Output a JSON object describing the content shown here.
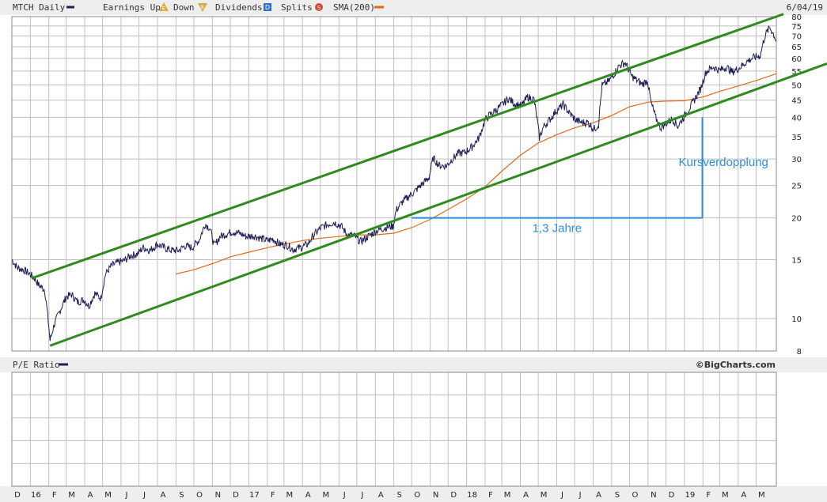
{
  "header": {
    "symbol_label": "MTCH Daily",
    "earnings_label": "Earnings Up",
    "earnings_icon_letter": "E",
    "down_label": "Down",
    "down_icon_letter": "E",
    "dividends_label": "Dividends",
    "dividends_icon_letter": "D",
    "splits_label": "Splits",
    "splits_icon_letter": "S",
    "sma_label": "SMA(200)",
    "date": "6/04/19"
  },
  "lower_panel": {
    "title": "P/E Ratio",
    "credit": "©BigCharts.com"
  },
  "colors": {
    "price": "#1f1f55",
    "sma": "#e06a1c",
    "channel": "#2e8b1e",
    "annotation": "#2b8ee0",
    "grid": "#bfbfbf",
    "earnings_icon": "#d9a93a",
    "dividends_icon": "#2f6fd0",
    "splits_icon": "#d04a3a"
  },
  "chart_data": {
    "type": "line",
    "y_scale": "log",
    "ylim": [
      8,
      80
    ],
    "y_ticks": [
      8,
      10,
      15,
      20,
      25,
      30,
      35,
      40,
      45,
      50,
      55,
      60,
      65,
      70,
      75,
      80
    ],
    "x_range": [
      "2015-12-01",
      "2019-06-04"
    ],
    "x_ticks": [
      {
        "label": "D",
        "date": "2015-12-01"
      },
      {
        "label": "16",
        "date": "2016-01-01"
      },
      {
        "label": "F",
        "date": "2016-02-01"
      },
      {
        "label": "M",
        "date": "2016-03-01"
      },
      {
        "label": "A",
        "date": "2016-04-01"
      },
      {
        "label": "M",
        "date": "2016-05-01"
      },
      {
        "label": "J",
        "date": "2016-06-01"
      },
      {
        "label": "J",
        "date": "2016-07-01"
      },
      {
        "label": "A",
        "date": "2016-08-01"
      },
      {
        "label": "S",
        "date": "2016-09-01"
      },
      {
        "label": "O",
        "date": "2016-10-01"
      },
      {
        "label": "N",
        "date": "2016-11-01"
      },
      {
        "label": "D",
        "date": "2016-12-01"
      },
      {
        "label": "17",
        "date": "2017-01-01"
      },
      {
        "label": "F",
        "date": "2017-02-01"
      },
      {
        "label": "M",
        "date": "2017-03-01"
      },
      {
        "label": "A",
        "date": "2017-04-01"
      },
      {
        "label": "M",
        "date": "2017-05-01"
      },
      {
        "label": "J",
        "date": "2017-06-01"
      },
      {
        "label": "J",
        "date": "2017-07-01"
      },
      {
        "label": "A",
        "date": "2017-08-01"
      },
      {
        "label": "S",
        "date": "2017-09-01"
      },
      {
        "label": "O",
        "date": "2017-10-01"
      },
      {
        "label": "N",
        "date": "2017-11-01"
      },
      {
        "label": "D",
        "date": "2017-12-01"
      },
      {
        "label": "18",
        "date": "2018-01-01"
      },
      {
        "label": "F",
        "date": "2018-02-01"
      },
      {
        "label": "M",
        "date": "2018-03-01"
      },
      {
        "label": "A",
        "date": "2018-04-01"
      },
      {
        "label": "M",
        "date": "2018-05-01"
      },
      {
        "label": "J",
        "date": "2018-06-01"
      },
      {
        "label": "J",
        "date": "2018-07-01"
      },
      {
        "label": "A",
        "date": "2018-08-01"
      },
      {
        "label": "S",
        "date": "2018-09-01"
      },
      {
        "label": "O",
        "date": "2018-10-01"
      },
      {
        "label": "N",
        "date": "2018-11-01"
      },
      {
        "label": "D",
        "date": "2018-12-01"
      },
      {
        "label": "19",
        "date": "2019-01-01"
      },
      {
        "label": "F",
        "date": "2019-02-01"
      },
      {
        "label": "M",
        "date": "2019-03-01"
      },
      {
        "label": "A",
        "date": "2019-04-01"
      },
      {
        "label": "M",
        "date": "2019-05-01"
      }
    ],
    "series": [
      {
        "name": "MTCH Daily",
        "role": "price",
        "points": [
          [
            "2015-12-01",
            15.0
          ],
          [
            "2015-12-10",
            14.2
          ],
          [
            "2015-12-20",
            14.0
          ],
          [
            "2015-12-31",
            13.6
          ],
          [
            "2016-01-08",
            13.2
          ],
          [
            "2016-01-15",
            12.6
          ],
          [
            "2016-01-25",
            12.2
          ],
          [
            "2016-02-03",
            8.6
          ],
          [
            "2016-02-10",
            9.6
          ],
          [
            "2016-02-20",
            10.6
          ],
          [
            "2016-03-01",
            11.6
          ],
          [
            "2016-03-10",
            11.8
          ],
          [
            "2016-03-20",
            11.2
          ],
          [
            "2016-03-31",
            11.4
          ],
          [
            "2016-04-08",
            10.9
          ],
          [
            "2016-04-18",
            11.9
          ],
          [
            "2016-04-28",
            11.5
          ],
          [
            "2016-05-06",
            13.6
          ],
          [
            "2016-05-16",
            14.4
          ],
          [
            "2016-05-26",
            14.7
          ],
          [
            "2016-06-06",
            14.9
          ],
          [
            "2016-06-16",
            15.4
          ],
          [
            "2016-06-28",
            15.6
          ],
          [
            "2016-07-08",
            16.3
          ],
          [
            "2016-07-20",
            16.0
          ],
          [
            "2016-08-01",
            16.7
          ],
          [
            "2016-08-12",
            16.3
          ],
          [
            "2016-08-24",
            16.0
          ],
          [
            "2016-09-06",
            16.0
          ],
          [
            "2016-09-16",
            16.5
          ],
          [
            "2016-09-28",
            16.3
          ],
          [
            "2016-10-10",
            17.2
          ],
          [
            "2016-10-20",
            19.2
          ],
          [
            "2016-10-28",
            18.6
          ],
          [
            "2016-11-04",
            16.5
          ],
          [
            "2016-11-14",
            17.6
          ],
          [
            "2016-11-24",
            17.9
          ],
          [
            "2016-12-05",
            18.2
          ],
          [
            "2016-12-16",
            18.0
          ],
          [
            "2016-12-28",
            17.6
          ],
          [
            "2017-01-09",
            17.7
          ],
          [
            "2017-01-20",
            17.4
          ],
          [
            "2017-02-01",
            17.1
          ],
          [
            "2017-02-10",
            17.3
          ],
          [
            "2017-02-22",
            16.7
          ],
          [
            "2017-03-06",
            16.6
          ],
          [
            "2017-03-16",
            16.1
          ],
          [
            "2017-03-28",
            16.3
          ],
          [
            "2017-04-10",
            16.7
          ],
          [
            "2017-04-20",
            17.8
          ],
          [
            "2017-05-02",
            18.7
          ],
          [
            "2017-05-12",
            19.1
          ],
          [
            "2017-05-24",
            19.4
          ],
          [
            "2017-06-05",
            18.9
          ],
          [
            "2017-06-15",
            17.8
          ],
          [
            "2017-06-26",
            17.7
          ],
          [
            "2017-07-07",
            17.0
          ],
          [
            "2017-07-14",
            17.3
          ],
          [
            "2017-07-24",
            17.8
          ],
          [
            "2017-08-03",
            18.3
          ],
          [
            "2017-08-14",
            18.6
          ],
          [
            "2017-08-22",
            18.8
          ],
          [
            "2017-08-31",
            18.9
          ],
          [
            "2017-09-05",
            21.1
          ],
          [
            "2017-09-15",
            22.3
          ],
          [
            "2017-09-26",
            23.2
          ],
          [
            "2017-10-06",
            24.0
          ],
          [
            "2017-10-18",
            25.2
          ],
          [
            "2017-10-30",
            26.4
          ],
          [
            "2017-11-06",
            30.2
          ],
          [
            "2017-11-16",
            28.7
          ],
          [
            "2017-11-28",
            28.6
          ],
          [
            "2017-12-08",
            30.0
          ],
          [
            "2017-12-18",
            31.2
          ],
          [
            "2017-12-29",
            31.4
          ],
          [
            "2018-01-10",
            32.6
          ],
          [
            "2018-01-22",
            34.8
          ],
          [
            "2018-02-01",
            39.2
          ],
          [
            "2018-02-08",
            40.6
          ],
          [
            "2018-02-19",
            42.0
          ],
          [
            "2018-03-01",
            43.5
          ],
          [
            "2018-03-12",
            45.5
          ],
          [
            "2018-03-22",
            44.0
          ],
          [
            "2018-04-03",
            43.2
          ],
          [
            "2018-04-13",
            46.0
          ],
          [
            "2018-04-24",
            45.2
          ],
          [
            "2018-05-03",
            34.8
          ],
          [
            "2018-05-10",
            37.5
          ],
          [
            "2018-05-21",
            39.5
          ],
          [
            "2018-06-01",
            42.0
          ],
          [
            "2018-06-12",
            43.6
          ],
          [
            "2018-06-22",
            41.2
          ],
          [
            "2018-07-03",
            39.2
          ],
          [
            "2018-07-13",
            38.6
          ],
          [
            "2018-07-24",
            38.6
          ],
          [
            "2018-08-02",
            36.8
          ],
          [
            "2018-08-10",
            38.0
          ],
          [
            "2018-08-16",
            49.8
          ],
          [
            "2018-08-27",
            51.2
          ],
          [
            "2018-09-06",
            54.2
          ],
          [
            "2018-09-14",
            57.2
          ],
          [
            "2018-09-24",
            58.2
          ],
          [
            "2018-10-04",
            53.2
          ],
          [
            "2018-10-12",
            51.8
          ],
          [
            "2018-10-22",
            50.2
          ],
          [
            "2018-10-31",
            51.6
          ],
          [
            "2018-11-06",
            44.2
          ],
          [
            "2018-11-14",
            39.8
          ],
          [
            "2018-11-22",
            37.2
          ],
          [
            "2018-12-03",
            38.6
          ],
          [
            "2018-12-12",
            39.6
          ],
          [
            "2018-12-21",
            37.6
          ],
          [
            "2019-01-02",
            40.6
          ],
          [
            "2019-01-15",
            44.2
          ],
          [
            "2019-01-28",
            48.6
          ],
          [
            "2019-02-06",
            54.6
          ],
          [
            "2019-02-18",
            56.6
          ],
          [
            "2019-03-01",
            55.2
          ],
          [
            "2019-03-12",
            56.6
          ],
          [
            "2019-03-22",
            54.6
          ],
          [
            "2019-04-03",
            56.2
          ],
          [
            "2019-04-15",
            58.6
          ],
          [
            "2019-04-26",
            60.2
          ],
          [
            "2019-05-08",
            61.2
          ],
          [
            "2019-05-16",
            70.2
          ],
          [
            "2019-05-24",
            74.2
          ],
          [
            "2019-05-31",
            70.6
          ],
          [
            "2019-06-04",
            67.5
          ]
        ]
      },
      {
        "name": "SMA(200)",
        "role": "sma",
        "points": [
          [
            "2016-09-01",
            13.6
          ],
          [
            "2016-10-01",
            14.0
          ],
          [
            "2016-11-01",
            14.6
          ],
          [
            "2016-12-01",
            15.3
          ],
          [
            "2017-01-01",
            15.8
          ],
          [
            "2017-02-01",
            16.3
          ],
          [
            "2017-03-01",
            16.7
          ],
          [
            "2017-04-01",
            17.1
          ],
          [
            "2017-05-01",
            17.4
          ],
          [
            "2017-06-01",
            17.6
          ],
          [
            "2017-07-01",
            17.8
          ],
          [
            "2017-08-01",
            17.8
          ],
          [
            "2017-09-01",
            18.0
          ],
          [
            "2017-10-01",
            18.7
          ],
          [
            "2017-11-01",
            19.8
          ],
          [
            "2017-12-01",
            21.2
          ],
          [
            "2018-01-01",
            22.8
          ],
          [
            "2018-02-01",
            24.8
          ],
          [
            "2018-03-01",
            27.6
          ],
          [
            "2018-04-01",
            30.8
          ],
          [
            "2018-05-01",
            33.5
          ],
          [
            "2018-06-01",
            35.5
          ],
          [
            "2018-07-01",
            37.2
          ],
          [
            "2018-08-01",
            38.5
          ],
          [
            "2018-09-01",
            40.5
          ],
          [
            "2018-10-01",
            43.0
          ],
          [
            "2018-11-01",
            44.4
          ],
          [
            "2018-12-01",
            44.7
          ],
          [
            "2019-01-01",
            44.8
          ],
          [
            "2019-02-01",
            46.0
          ],
          [
            "2019-03-01",
            47.8
          ],
          [
            "2019-04-01",
            49.6
          ],
          [
            "2019-05-01",
            51.5
          ],
          [
            "2019-06-04",
            54.0
          ]
        ]
      }
    ],
    "trendlines": [
      {
        "role": "channel-top",
        "from": [
          "2016-01-03",
          13.2
        ],
        "to": [
          "2019-06-04",
          80.0
        ]
      },
      {
        "role": "channel-bottom",
        "from": [
          "2016-02-03",
          8.3
        ],
        "to": [
          "2019-06-04",
          51.0
        ]
      }
    ],
    "annotations": [
      {
        "role": "time-span",
        "label": "1,3 Jahre",
        "from": [
          "2017-10-01",
          20
        ],
        "to": [
          "2019-01-31",
          20
        ]
      },
      {
        "role": "doubling",
        "label": "Kursverdopplung",
        "from": [
          "2019-01-31",
          20
        ],
        "to": [
          "2019-01-31",
          40
        ]
      }
    ],
    "lower_panel": {
      "title": "P/E Ratio",
      "values": []
    }
  }
}
